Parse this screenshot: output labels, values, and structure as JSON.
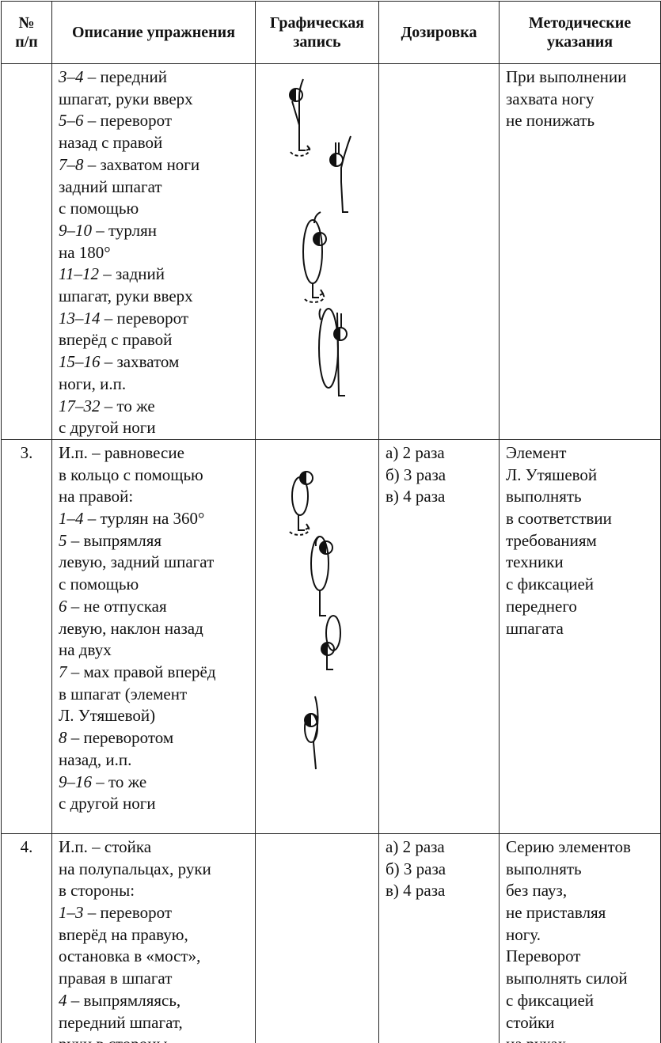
{
  "table": {
    "header": [
      [
        "№",
        "п/п"
      ],
      [
        "Описание упражнения"
      ],
      [
        "Графическая",
        "запись"
      ],
      [
        "Дозировка"
      ],
      [
        "Методические",
        "указания"
      ]
    ],
    "rows": [
      {
        "description": [
          {
            "em": "3–4",
            "text": "– передний"
          },
          "шпагат, руки вверх",
          {
            "em": "5–6",
            "text": "– переворот"
          },
          "назад с правой",
          {
            "em": "7–8",
            "text": "– захватом ноги"
          },
          "задний шпагат",
          "с помощью",
          {
            "em": "9–10",
            "text": "– турлян"
          },
          "на 180°",
          {
            "em": "11–12",
            "text": "– задний"
          },
          "шпагат, руки вверх",
          {
            "em": "13–14",
            "text": "– переворот"
          },
          "вперёд с правой",
          {
            "em": "15–16",
            "text": "– захватом"
          },
          "ноги, и.п.",
          {
            "em": "17–32",
            "text": "– то же"
          },
          "с другой ноги"
        ],
        "notes": [
          "При выполнении",
          "захвата ногу",
          "не понижать"
        ]
      },
      {
        "number": "3.",
        "description": [
          "И.п. – равновесие",
          "в кольцо с помощью",
          "на правой:",
          {
            "em": "1–4",
            "text": "– турлян на 360°"
          },
          {
            "em": "5",
            "text": "– выпрямляя"
          },
          "левую, задний шпагат",
          "с помощью",
          {
            "em": "6",
            "text": "– не отпуская"
          },
          "левую, наклон назад",
          "на двух",
          {
            "em": "7",
            "text": "– мах правой вперёд"
          },
          "в шпагат (элемент",
          "Л. Утяшевой)",
          {
            "em": "8",
            "text": "– переворотом"
          },
          "назад, и.п.",
          {
            "em": "9–16",
            "text": "– то же"
          },
          "с другой ноги"
        ],
        "dosage": [
          "а) 2 раза",
          "б) 3 раза",
          "в) 4 раза"
        ],
        "notes": [
          "Элемент",
          "Л. Утяшевой",
          "выполнять",
          "в соответствии",
          "требованиям",
          "техники",
          "с фиксацией",
          "переднего",
          "шпагата"
        ]
      },
      {
        "number": "4.",
        "description": [
          "И.п. – стойка",
          "на полупальцах, руки",
          "в стороны:",
          {
            "em": "1–3",
            "text": "– переворот"
          },
          "вперёд на правую,",
          "остановка в «мост»,",
          "правая в шпагат",
          {
            "em": "4",
            "text": "– выпрямляясь,"
          },
          "передний шпагат,",
          "руки в стороны"
        ],
        "dosage": [
          "а) 2 раза",
          "б) 3 раза",
          "в) 4 раза"
        ],
        "notes": [
          "Серию элементов",
          "выполнять",
          "без пауз,",
          "не приставляя",
          "ногу.",
          "Переворот",
          "выполнять силой",
          "с фиксацией",
          "стойки",
          "на руках."
        ]
      }
    ]
  }
}
